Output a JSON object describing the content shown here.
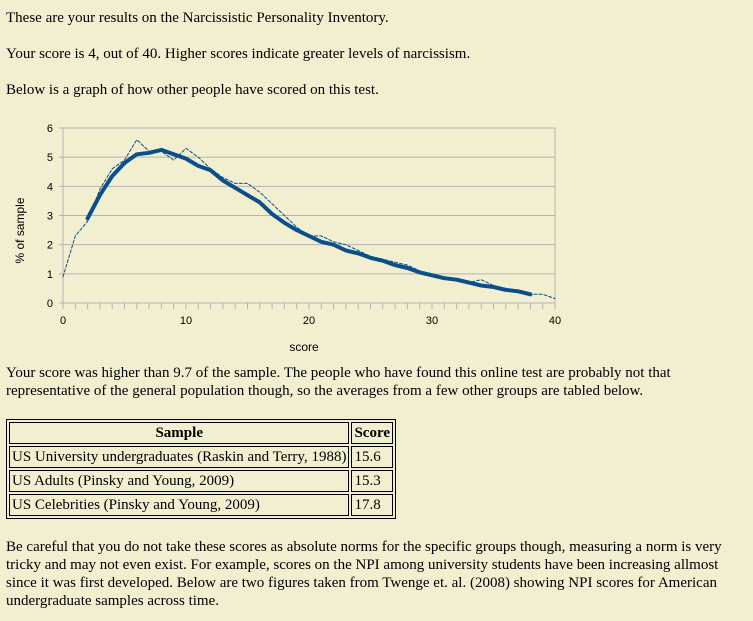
{
  "intro": {
    "line1": "These are your results on the Narcissistic Personality Inventory.",
    "line2": "Your score is 4, out of 40. Higher scores indicate greater levels of narcissism.",
    "line3": "Below is a graph of how other people have scored on this test."
  },
  "chart_data": {
    "type": "line",
    "xlabel": "score",
    "ylabel": "% of sample",
    "xlim": [
      0,
      40
    ],
    "ylim": [
      0,
      6
    ],
    "xticks": [
      "0",
      "10",
      "20",
      "30",
      "40"
    ],
    "yticks": [
      "0",
      "1",
      "2",
      "3",
      "4",
      "5",
      "6"
    ],
    "grid": true,
    "series": [
      {
        "style": "dashed-thin",
        "color": "#0b4f8a",
        "x": [
          0,
          1,
          2,
          3,
          4,
          5,
          6,
          7,
          8,
          9,
          10,
          11,
          12,
          13,
          14,
          15,
          16,
          17,
          18,
          19,
          20,
          21,
          22,
          23,
          24,
          25,
          26,
          27,
          28,
          29,
          30,
          31,
          32,
          33,
          34,
          35,
          36,
          37,
          38,
          39,
          40
        ],
        "values": [
          0.9,
          2.3,
          2.8,
          3.9,
          4.6,
          4.9,
          5.6,
          5.2,
          5.2,
          4.9,
          5.3,
          5.0,
          4.6,
          4.3,
          4.1,
          4.1,
          3.8,
          3.4,
          3.0,
          2.6,
          2.3,
          2.3,
          2.1,
          2.0,
          1.8,
          1.6,
          1.5,
          1.4,
          1.3,
          1.1,
          1.0,
          0.9,
          0.8,
          0.7,
          0.8,
          0.6,
          0.5,
          0.4,
          0.3,
          0.3,
          0.15
        ]
      },
      {
        "style": "solid-thick",
        "color": "#0b4f8a",
        "x": [
          2,
          3,
          4,
          5,
          6,
          7,
          8,
          9,
          10,
          11,
          12,
          13,
          14,
          15,
          16,
          17,
          18,
          19,
          20,
          21,
          22,
          23,
          24,
          25,
          26,
          27,
          28,
          29,
          30,
          31,
          32,
          33,
          34,
          35,
          36,
          37,
          38
        ],
        "values": [
          2.9,
          3.7,
          4.35,
          4.8,
          5.1,
          5.15,
          5.25,
          5.1,
          4.95,
          4.7,
          4.55,
          4.2,
          3.95,
          3.7,
          3.45,
          3.05,
          2.75,
          2.5,
          2.3,
          2.1,
          2.0,
          1.8,
          1.7,
          1.55,
          1.45,
          1.3,
          1.2,
          1.05,
          0.95,
          0.85,
          0.8,
          0.7,
          0.6,
          0.55,
          0.45,
          0.4,
          0.3
        ]
      }
    ]
  },
  "summary": {
    "text": "Your score was higher than 9.7 of the sample. The people who have found this online test are probably not that representative of the general population though, so the averages from a few other groups are tabled below."
  },
  "table": {
    "headers": [
      "Sample",
      "Score"
    ],
    "rows": [
      [
        "US University undergraduates (Raskin and Terry, 1988)",
        "15.6"
      ],
      [
        "US Adults (Pinsky and Young, 2009)",
        "15.3"
      ],
      [
        "US Celebrities (Pinsky and Young, 2009)",
        "17.8"
      ]
    ]
  },
  "footer": {
    "text": "Be careful that you do not take these scores as absolute norms for the specific groups though, measuring a norm is very tricky and may not even exist. For example, scores on the NPI among university students have been increasing allmost since it was first developed. Below are two figures taken from Twenge et. al. (2008) showing NPI scores for American undergraduate samples across time."
  }
}
